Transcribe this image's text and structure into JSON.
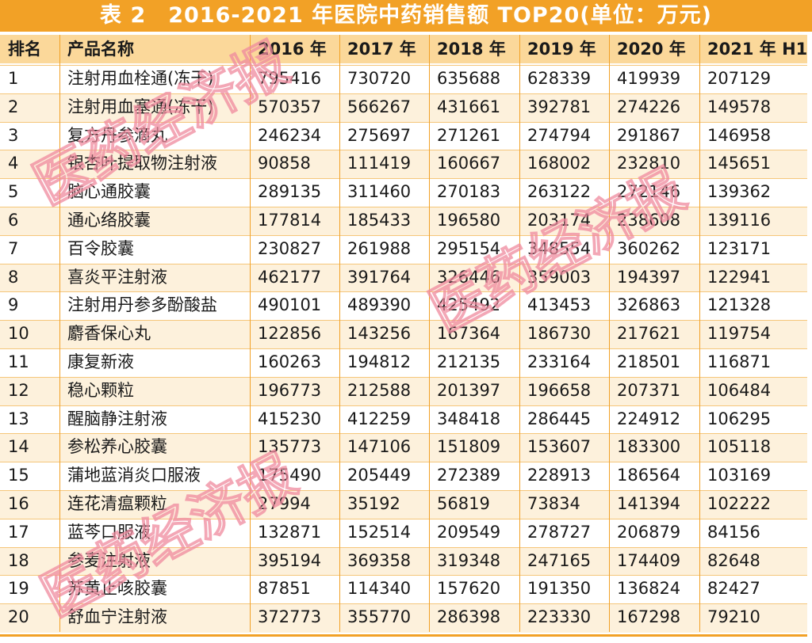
{
  "title": "表 2　2016-2021 年医院中药销售额 TOP20(单位：万元)",
  "watermark": "医药经济报",
  "table": {
    "header": [
      "排名",
      "产品名称",
      "2016 年",
      "2017 年",
      "2018 年",
      "2019 年",
      "2020 年",
      "2021 年 H1"
    ],
    "rows": [
      [
        1,
        "注射用血栓通(冻干)",
        795416,
        730720,
        635688,
        628339,
        419939,
        207129
      ],
      [
        2,
        "注射用血塞通(冻干)",
        570357,
        566267,
        431661,
        392781,
        274226,
        149578
      ],
      [
        3,
        "复方丹参滴丸",
        246234,
        275697,
        271261,
        274794,
        291867,
        146958
      ],
      [
        4,
        "银杏叶提取物注射液",
        90858,
        111419,
        160667,
        168002,
        232810,
        145651
      ],
      [
        5,
        "脑心通胶囊",
        289135,
        311460,
        270183,
        263122,
        272146,
        139362
      ],
      [
        6,
        "通心络胶囊",
        177814,
        185433,
        196580,
        203174,
        238608,
        139116
      ],
      [
        7,
        "百令胶囊",
        230827,
        261988,
        295154,
        348554,
        360262,
        123171
      ],
      [
        8,
        "喜炎平注射液",
        462177,
        391764,
        326446,
        359003,
        194397,
        122941
      ],
      [
        9,
        "注射用丹参多酚酸盐",
        490101,
        489390,
        425492,
        413453,
        326863,
        121328
      ],
      [
        10,
        "麝香保心丸",
        122856,
        143256,
        167364,
        186730,
        217621,
        119754
      ],
      [
        11,
        "康复新液",
        160263,
        194812,
        212135,
        233164,
        218501,
        116871
      ],
      [
        12,
        "稳心颗粒",
        196773,
        212588,
        201397,
        196658,
        207371,
        106484
      ],
      [
        13,
        "醒脑静注射液",
        415230,
        412259,
        348418,
        286445,
        224912,
        106295
      ],
      [
        14,
        "参松养心胶囊",
        135773,
        147106,
        151809,
        153607,
        183300,
        105118
      ],
      [
        15,
        "蒲地蓝消炎口服液",
        175490,
        205449,
        272389,
        228913,
        186564,
        103169
      ],
      [
        16,
        "连花清瘟颗粒",
        27994,
        35192,
        56819,
        73834,
        141394,
        102222
      ],
      [
        17,
        "蓝芩口服液",
        132871,
        152514,
        209549,
        278727,
        206879,
        84156
      ],
      [
        18,
        "参麦注射液",
        395194,
        369358,
        319348,
        247165,
        174409,
        82648
      ],
      [
        19,
        "苏黄止咳胶囊",
        87851,
        114340,
        157620,
        191350,
        136824,
        82427
      ],
      [
        20,
        "舒血宁注射液",
        372773,
        355770,
        286398,
        223330,
        167298,
        79210
      ]
    ]
  }
}
